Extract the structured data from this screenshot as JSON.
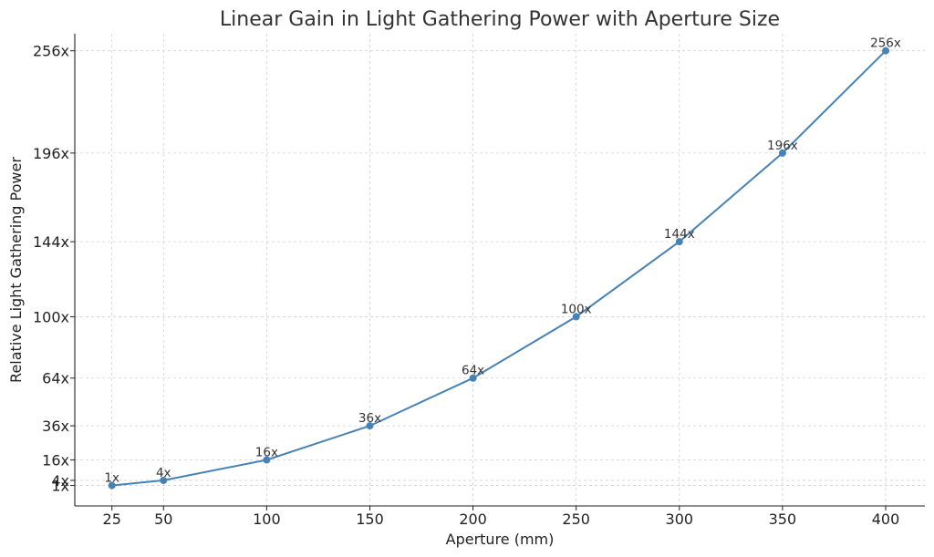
{
  "chart_data": {
    "type": "line",
    "title": "Linear Gain in Light Gathering Power with Aperture Size",
    "xlabel": "Aperture (mm)",
    "ylabel": "Relative Light Gathering Power",
    "x": [
      25,
      50,
      100,
      150,
      200,
      250,
      300,
      350,
      400
    ],
    "y": [
      1,
      4,
      16,
      36,
      64,
      100,
      144,
      196,
      256
    ],
    "point_labels": [
      "1x",
      "4x",
      "16x",
      "36x",
      "64x",
      "100x",
      "144x",
      "196x",
      "256x"
    ],
    "x_ticks": [
      25,
      50,
      100,
      150,
      200,
      250,
      300,
      350,
      400
    ],
    "y_ticks": [
      1,
      4,
      16,
      36,
      64,
      100,
      144,
      196,
      256
    ],
    "y_tick_labels": [
      "1x",
      "4x",
      "16x",
      "36x",
      "64x",
      "100x",
      "144x",
      "196x",
      "256x"
    ],
    "y_scale": "sqrt",
    "xlim": [
      7,
      419
    ],
    "ylim": [
      -11,
      266
    ],
    "grid": true,
    "legend": "none",
    "colors": {
      "line": "#4682b4",
      "marker": "#4682b4",
      "grid": "#d0d0d0"
    }
  }
}
